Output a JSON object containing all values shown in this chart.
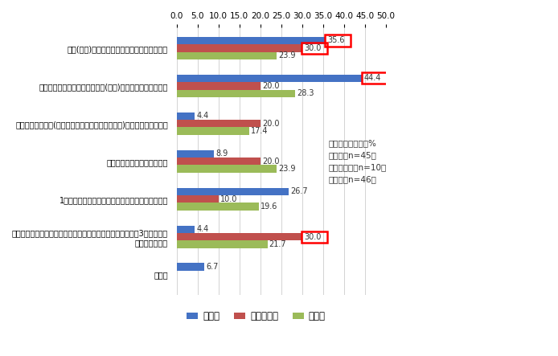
{
  "categories": [
    "予算(投資)が従来の新規事業よりも大きかった",
    "スモールスタートで最初は予算(投資)をあまりかけなかった",
    "様々なプレイヤー(企業やベンチャーキャピタル等)からの出資を受けた",
    "銀行など金融機関からの借入",
    "1年目や２年目など短期的スパンで黒字化を求めた",
    "すくに黒字化を求めず、中長期的スパンで先行投資をした（3年間や５年\n間は投資期間）",
    "その他"
  ],
  "series": {
    "大企業": [
      35.6,
      44.4,
      4.4,
      8.9,
      26.7,
      4.4,
      6.7
    ],
    "ベンチャー": [
      30.0,
      20.0,
      20.0,
      20.0,
      10.0,
      30.0,
      0.0
    ],
    "その他": [
      23.9,
      28.3,
      17.4,
      23.9,
      19.6,
      21.7,
      0.0
    ]
  },
  "colors": {
    "大企業": "#4472C4",
    "ベンチャー": "#C0504D",
    "その他": "#9BBB59"
  },
  "xlim": [
    0,
    50
  ],
  "xticks": [
    0.0,
    5.0,
    10.0,
    15.0,
    20.0,
    25.0,
    30.0,
    35.0,
    40.0,
    45.0,
    50.0
  ],
  "xtick_labels": [
    "0.0",
    "5.0",
    "10.0",
    "15.0",
    "20.0",
    "25.0",
    "30.0",
    "35.0",
    "40.0",
    "45.0",
    "50.0"
  ],
  "annotation_note": "複数回答、単位：%\n大企業（n=45）\nベンチャー（n=10）\nその他（n=46）",
  "legend_labels": [
    "大企業",
    "ベンチャー",
    "その他"
  ],
  "background_color": "#FFFFFF",
  "grid_color": "#CCCCCC",
  "highlight_boxes": [
    [
      0,
      "大企業"
    ],
    [
      0,
      "ベンチャー"
    ],
    [
      1,
      "大企業"
    ],
    [
      5,
      "ベンチャー"
    ]
  ]
}
